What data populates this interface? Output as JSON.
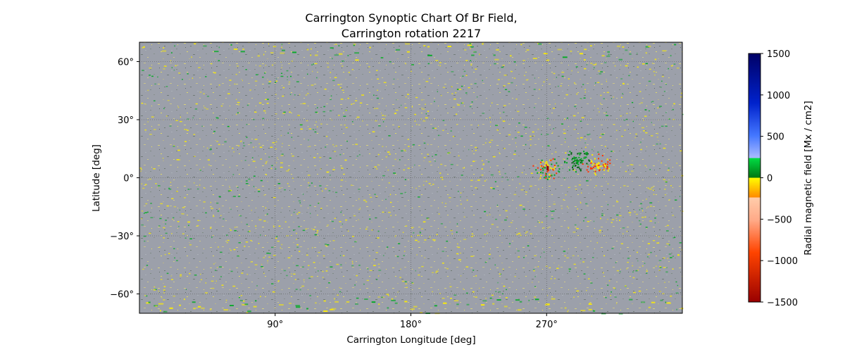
{
  "chart_data": {
    "type": "heatmap",
    "title_lines": [
      "Carrington Synoptic Chart Of Br Field,",
      "Carrington rotation 2217"
    ],
    "xlabel": "Carrington Longitude [deg]",
    "ylabel": "Latitude [deg]",
    "xlim": [
      0,
      360
    ],
    "ylim": [
      -70,
      70
    ],
    "x_ticks": [
      90,
      180,
      270
    ],
    "x_tick_labels": [
      "90°",
      "180°",
      "270°"
    ],
    "y_ticks": [
      60,
      30,
      0,
      -30,
      -60
    ],
    "y_tick_labels": [
      "60°",
      "30°",
      "0°",
      "−30°",
      "−60°"
    ],
    "grid": true,
    "colorbar": {
      "label": "Radial magnetic field [Mx / cm2]",
      "range": [
        -1500,
        1500
      ],
      "ticks": [
        1500,
        1000,
        500,
        0,
        -500,
        -1000,
        -1500
      ],
      "tick_labels": [
        "1500",
        "1000",
        "500",
        "0",
        "−500",
        "−1000",
        "−1500"
      ],
      "colors": {
        "positive_strong": "#000066",
        "positive_mid": "#0033ff",
        "positive_weak": "#aabbff",
        "near_zero_positive": "#00aa22",
        "near_zero_negative": "#ffee00",
        "negative_weak": "#ffbb99",
        "negative_mid": "#ff3300",
        "negative_strong": "#990000"
      }
    },
    "background_color": "#9a9ea8",
    "active_regions": [
      {
        "lon": 270,
        "lat": 5,
        "polarity": "mixed"
      },
      {
        "lon": 290,
        "lat": 9,
        "polarity": "positive"
      },
      {
        "lon": 303,
        "lat": 7,
        "polarity": "negative"
      }
    ]
  }
}
